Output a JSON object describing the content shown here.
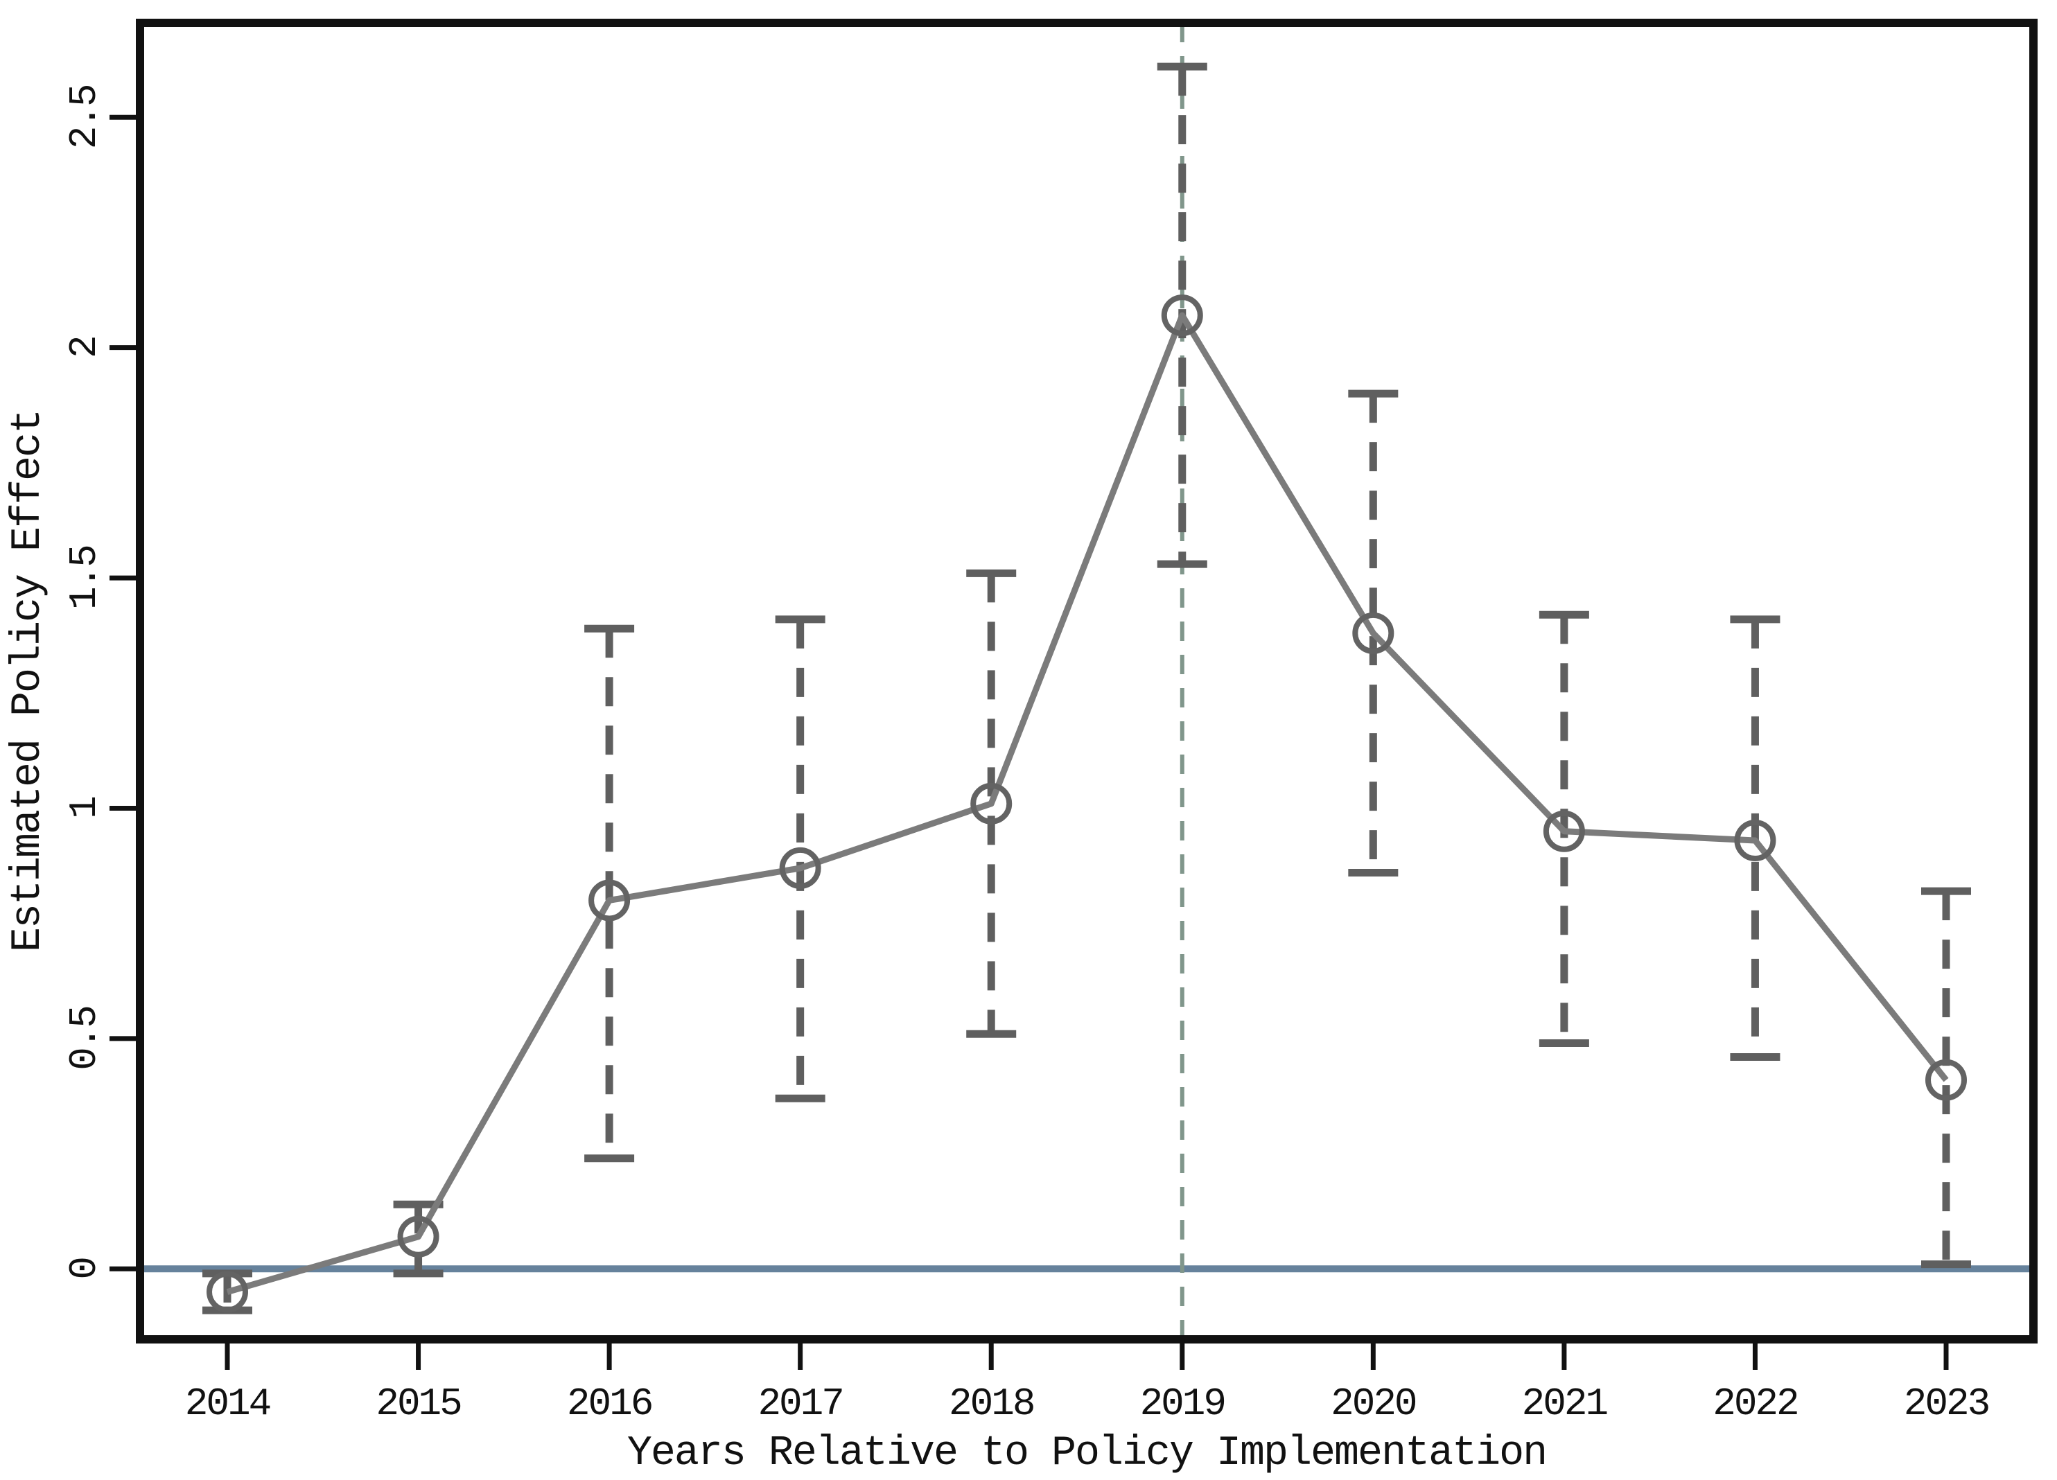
{
  "figure": {
    "background_color": "#ffffff",
    "xlabel": "Years Relative to Policy Implementation",
    "ylabel": "Estimated Policy Effect"
  },
  "colors": {
    "axis_and_text": "#111111",
    "series_line": "#7b7b7b",
    "marker_stroke": "#636363",
    "whisker": "#5f5f5f",
    "zero_line": "#66829c",
    "event_line": "#80968b"
  },
  "chart_data": {
    "type": "line",
    "title": "",
    "xlabel": "Years Relative to Policy Implementation",
    "ylabel": "Estimated Policy Effect",
    "categories": [
      "2014",
      "2015",
      "2016",
      "2017",
      "2018",
      "2019",
      "2020",
      "2021",
      "2022",
      "2023"
    ],
    "series": [
      {
        "name": "Estimated Policy Effect",
        "values": [
          -0.05,
          0.07,
          0.8,
          0.87,
          1.01,
          2.07,
          1.38,
          0.95,
          0.93,
          0.41
        ]
      }
    ],
    "ci_low": [
      -0.09,
      -0.01,
      0.24,
      0.37,
      0.51,
      1.53,
      0.86,
      0.49,
      0.46,
      0.01
    ],
    "ci_high": [
      -0.01,
      0.14,
      1.39,
      1.41,
      1.51,
      2.61,
      1.9,
      1.42,
      1.41,
      0.82
    ],
    "ytick_values": [
      0,
      0.5,
      1,
      1.5,
      2,
      2.5
    ],
    "ytick_labels": [
      "0",
      "0.5",
      "1",
      "1.5",
      "2",
      "2.5"
    ],
    "ylim": [
      -0.153,
      2.705
    ],
    "grid": false,
    "legend_position": "none",
    "marker": "open-circle",
    "error_bar_style": "dashed-with-caps",
    "reference_lines": {
      "horizontal_at_value": 0,
      "vertical_at_category": "2019",
      "vertical_style": "dashed"
    }
  }
}
